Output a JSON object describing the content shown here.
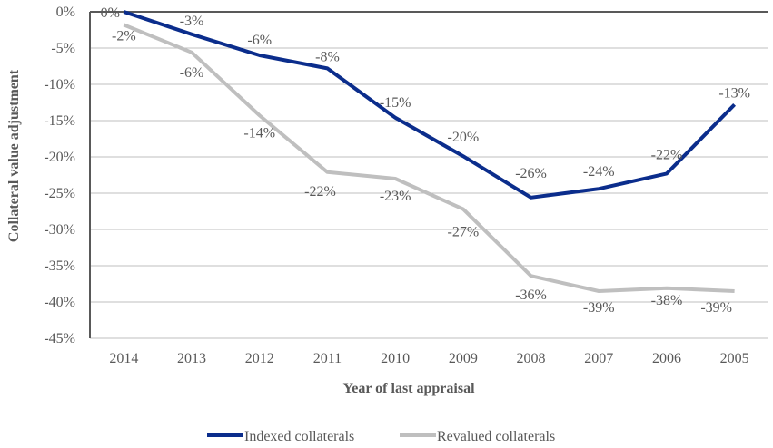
{
  "chart_data": {
    "type": "line",
    "title": "",
    "xlabel": "Year of last appraisal",
    "ylabel": "Collateral value adjustment",
    "categories": [
      "2014",
      "2013",
      "2012",
      "2011",
      "2010",
      "2009",
      "2008",
      "2007",
      "2006",
      "2005"
    ],
    "ylim": [
      -45,
      0
    ],
    "yticks": [
      0,
      -5,
      -10,
      -15,
      -20,
      -25,
      -30,
      -35,
      -40,
      -45
    ],
    "ytick_labels": [
      "0%",
      "-5%",
      "-10%",
      "-15%",
      "-20%",
      "-25%",
      "-30%",
      "-35%",
      "-40%",
      "-45%"
    ],
    "grid": true,
    "legend_position": "bottom",
    "series": [
      {
        "name": "Indexed collaterals",
        "color": "#0b2d8c",
        "values": [
          0.0,
          -3.1,
          -6.0,
          -7.8,
          -14.6,
          -19.9,
          -25.6,
          -24.4,
          -22.3,
          -12.8
        ],
        "labels": [
          "0%",
          "-3%",
          "-6%",
          "-8%",
          "-15%",
          "-20%",
          "-26%",
          "-24%",
          "-22%",
          "-13%"
        ]
      },
      {
        "name": "Revalued collaterals",
        "color": "#bfbfbf",
        "values": [
          -1.8,
          -5.6,
          -14.3,
          -22.1,
          -23.0,
          -27.2,
          -36.4,
          -38.5,
          -38.1,
          -38.5
        ],
        "labels": [
          "-2%",
          "-6%",
          "-14%",
          "-22%",
          "-23%",
          "-27%",
          "-36%",
          "-39%",
          "-38%",
          "-39%"
        ]
      }
    ]
  }
}
